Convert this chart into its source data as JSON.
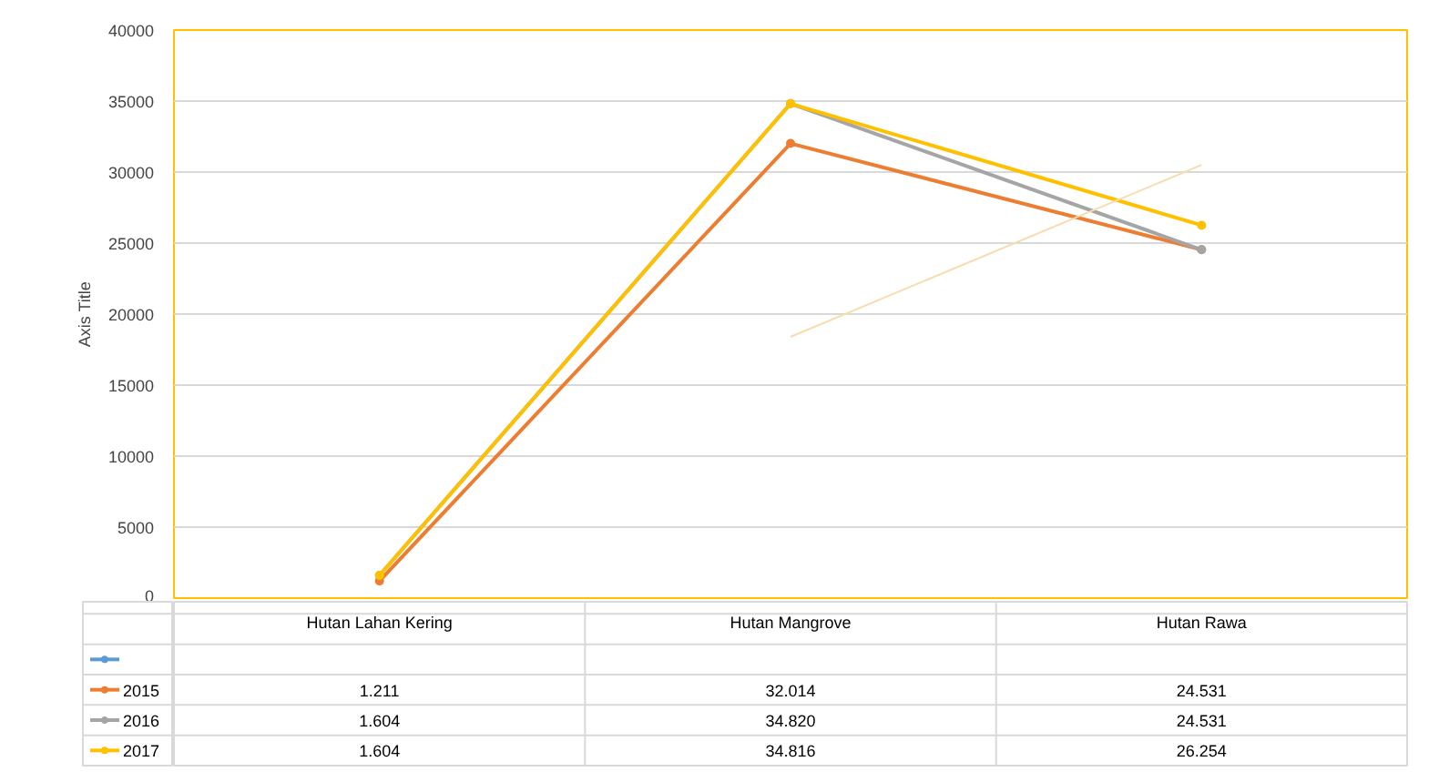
{
  "chart_data": {
    "type": "line",
    "ylabel": "Axis Title",
    "categories": [
      "Hutan Lahan Kering",
      "Hutan Mangrove",
      "Hutan Rawa"
    ],
    "ylim": [
      0,
      40000
    ],
    "yticks": [
      0,
      5000,
      10000,
      15000,
      20000,
      25000,
      30000,
      35000,
      40000
    ],
    "grid": "y",
    "legend": "bottom",
    "marker": "circle",
    "series": [
      {
        "color": "#5b9bd5",
        "values": [
          null,
          null,
          null
        ]
      },
      {
        "name": "2015",
        "color": "#ed7d31",
        "values": [
          1211,
          32014,
          24531
        ],
        "value_labels": [
          "1.211",
          "32.014",
          "24.531"
        ]
      },
      {
        "name": "2016",
        "color": "#a5a5a5",
        "values": [
          1604,
          34820,
          24531
        ],
        "value_labels": [
          "1.604",
          "34.820",
          "24.531"
        ]
      },
      {
        "name": "2017",
        "color": "#ffc000",
        "values": [
          1604,
          34816,
          26254
        ],
        "value_labels": [
          "1.604",
          "34.816",
          "26.254"
        ]
      },
      {
        "type": "line",
        "color": "#f8dcae",
        "marker": "none",
        "x": [
          "Hutan Mangrove",
          "Hutan Rawa"
        ],
        "values": [
          18400,
          30500
        ]
      }
    ]
  }
}
